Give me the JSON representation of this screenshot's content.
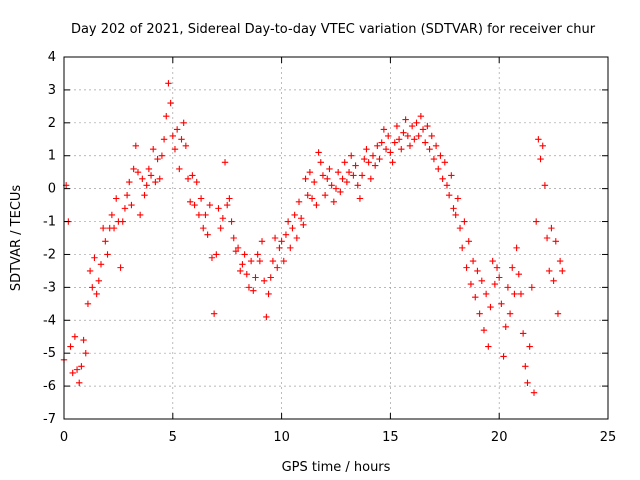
{
  "chart_data": {
    "type": "scatter",
    "title": "Day 202 of 2021, Sidereal Day-to-day VTEC variation (SDTVAR) for receiver chur",
    "xlabel": "GPS time / hours",
    "ylabel": "SDTVAR / TECUs",
    "xlim": [
      0,
      25
    ],
    "ylim": [
      -7,
      4
    ],
    "xticks": [
      0,
      5,
      10,
      15,
      20,
      25
    ],
    "yticks": [
      -7,
      -6,
      -5,
      -4,
      -3,
      -2,
      -1,
      0,
      1,
      2,
      3,
      4
    ],
    "grid": true,
    "marker": "+",
    "color": "#ff0000",
    "series": [
      {
        "name": "SDTVAR",
        "points": [
          [
            0.0,
            -5.2
          ],
          [
            0.1,
            0.1
          ],
          [
            0.2,
            -1.0
          ],
          [
            0.3,
            -4.8
          ],
          [
            0.4,
            -5.6
          ],
          [
            0.5,
            -4.5
          ],
          [
            0.6,
            -5.5
          ],
          [
            0.7,
            -5.9
          ],
          [
            0.8,
            -5.4
          ],
          [
            0.9,
            -4.6
          ],
          [
            1.0,
            -5.0
          ],
          [
            1.1,
            -3.5
          ],
          [
            1.2,
            -2.5
          ],
          [
            1.3,
            -3.0
          ],
          [
            1.4,
            -2.1
          ],
          [
            1.5,
            -3.2
          ],
          [
            1.6,
            -2.8
          ],
          [
            1.7,
            -2.3
          ],
          [
            1.8,
            -1.2
          ],
          [
            1.9,
            -1.6
          ],
          [
            2.0,
            -2.0
          ],
          [
            2.1,
            -1.2
          ],
          [
            2.2,
            -0.8
          ],
          [
            2.3,
            -1.2
          ],
          [
            2.4,
            -0.3
          ],
          [
            2.5,
            -1.0
          ],
          [
            2.6,
            -2.4
          ],
          [
            2.7,
            -1.0
          ],
          [
            2.8,
            -0.6
          ],
          [
            2.9,
            -0.2
          ],
          [
            3.0,
            0.2
          ],
          [
            3.1,
            -0.5
          ],
          [
            3.2,
            0.6
          ],
          [
            3.3,
            1.3
          ],
          [
            3.4,
            0.5
          ],
          [
            3.5,
            -0.8
          ],
          [
            3.6,
            0.3
          ],
          [
            3.7,
            -0.2
          ],
          [
            3.8,
            0.1
          ],
          [
            3.9,
            0.6
          ],
          [
            4.0,
            0.4
          ],
          [
            4.1,
            1.2
          ],
          [
            4.2,
            0.2
          ],
          [
            4.3,
            0.9
          ],
          [
            4.4,
            0.3
          ],
          [
            4.5,
            1.0
          ],
          [
            4.6,
            1.5
          ],
          [
            4.7,
            2.2
          ],
          [
            4.8,
            3.2
          ],
          [
            4.9,
            2.6
          ],
          [
            5.0,
            1.6
          ],
          [
            5.1,
            1.2
          ],
          [
            5.2,
            1.8
          ],
          [
            5.3,
            0.6
          ],
          [
            5.4,
            1.5
          ],
          [
            5.5,
            2.0
          ],
          [
            5.6,
            1.3
          ],
          [
            5.7,
            0.3
          ],
          [
            5.8,
            -0.4
          ],
          [
            5.9,
            0.4
          ],
          [
            6.0,
            -0.5
          ],
          [
            6.1,
            0.2
          ],
          [
            6.2,
            -0.8
          ],
          [
            6.3,
            -0.3
          ],
          [
            6.4,
            -1.2
          ],
          [
            6.5,
            -0.8
          ],
          [
            6.6,
            -1.4
          ],
          [
            6.7,
            -0.5
          ],
          [
            6.8,
            -2.1
          ],
          [
            6.9,
            -3.8
          ],
          [
            7.0,
            -2.0
          ],
          [
            7.1,
            -0.6
          ],
          [
            7.2,
            -1.2
          ],
          [
            7.3,
            -0.9
          ],
          [
            7.4,
            0.8
          ],
          [
            7.5,
            -0.5
          ],
          [
            7.6,
            -0.3
          ],
          [
            7.7,
            -1.0
          ],
          [
            7.8,
            -1.5
          ],
          [
            7.9,
            -1.9
          ],
          [
            8.0,
            -1.8
          ],
          [
            8.1,
            -2.5
          ],
          [
            8.2,
            -2.3
          ],
          [
            8.3,
            -2.0
          ],
          [
            8.4,
            -2.6
          ],
          [
            8.5,
            -3.0
          ],
          [
            8.6,
            -2.2
          ],
          [
            8.7,
            -3.1
          ],
          [
            8.8,
            -2.7
          ],
          [
            8.9,
            -2.0
          ],
          [
            9.0,
            -2.2
          ],
          [
            9.1,
            -1.6
          ],
          [
            9.2,
            -2.8
          ],
          [
            9.3,
            -3.9
          ],
          [
            9.4,
            -3.2
          ],
          [
            9.5,
            -2.7
          ],
          [
            9.6,
            -2.2
          ],
          [
            9.7,
            -1.5
          ],
          [
            9.8,
            -2.4
          ],
          [
            9.9,
            -1.8
          ],
          [
            10.0,
            -1.6
          ],
          [
            10.1,
            -2.2
          ],
          [
            10.2,
            -1.4
          ],
          [
            10.3,
            -1.0
          ],
          [
            10.4,
            -1.8
          ],
          [
            10.5,
            -1.2
          ],
          [
            10.6,
            -0.8
          ],
          [
            10.7,
            -1.5
          ],
          [
            10.8,
            -0.4
          ],
          [
            10.9,
            -0.9
          ],
          [
            11.0,
            -1.1
          ],
          [
            11.1,
            0.3
          ],
          [
            11.2,
            -0.2
          ],
          [
            11.3,
            0.5
          ],
          [
            11.4,
            -0.3
          ],
          [
            11.5,
            0.2
          ],
          [
            11.6,
            -0.5
          ],
          [
            11.7,
            1.1
          ],
          [
            11.8,
            0.8
          ],
          [
            11.9,
            0.4
          ],
          [
            12.0,
            -0.2
          ],
          [
            12.1,
            0.3
          ],
          [
            12.2,
            0.6
          ],
          [
            12.3,
            0.1
          ],
          [
            12.4,
            -0.4
          ],
          [
            12.5,
            0.0
          ],
          [
            12.6,
            0.5
          ],
          [
            12.7,
            -0.1
          ],
          [
            12.8,
            0.3
          ],
          [
            12.9,
            0.8
          ],
          [
            13.0,
            0.2
          ],
          [
            13.1,
            0.5
          ],
          [
            13.2,
            1.0
          ],
          [
            13.3,
            0.4
          ],
          [
            13.4,
            0.7
          ],
          [
            13.5,
            0.1
          ],
          [
            13.6,
            -0.3
          ],
          [
            13.7,
            0.4
          ],
          [
            13.8,
            0.9
          ],
          [
            13.9,
            1.2
          ],
          [
            14.0,
            0.8
          ],
          [
            14.1,
            0.3
          ],
          [
            14.2,
            1.0
          ],
          [
            14.3,
            0.7
          ],
          [
            14.4,
            1.3
          ],
          [
            14.5,
            0.9
          ],
          [
            14.6,
            1.4
          ],
          [
            14.7,
            1.8
          ],
          [
            14.8,
            1.2
          ],
          [
            14.9,
            1.6
          ],
          [
            15.0,
            1.1
          ],
          [
            15.1,
            0.8
          ],
          [
            15.2,
            1.4
          ],
          [
            15.3,
            1.9
          ],
          [
            15.4,
            1.5
          ],
          [
            15.5,
            1.2
          ],
          [
            15.6,
            1.7
          ],
          [
            15.7,
            2.1
          ],
          [
            15.8,
            1.6
          ],
          [
            15.9,
            1.3
          ],
          [
            16.0,
            1.9
          ],
          [
            16.1,
            1.5
          ],
          [
            16.2,
            2.0
          ],
          [
            16.3,
            1.6
          ],
          [
            16.4,
            2.2
          ],
          [
            16.5,
            1.8
          ],
          [
            16.6,
            1.4
          ],
          [
            16.7,
            1.9
          ],
          [
            16.8,
            1.2
          ],
          [
            16.9,
            1.6
          ],
          [
            17.0,
            0.9
          ],
          [
            17.1,
            1.3
          ],
          [
            17.2,
            0.6
          ],
          [
            17.3,
            1.0
          ],
          [
            17.4,
            0.3
          ],
          [
            17.5,
            0.8
          ],
          [
            17.6,
            0.1
          ],
          [
            17.7,
            -0.2
          ],
          [
            17.8,
            0.4
          ],
          [
            17.9,
            -0.6
          ],
          [
            18.0,
            -0.8
          ],
          [
            18.1,
            -0.3
          ],
          [
            18.2,
            -1.2
          ],
          [
            18.3,
            -1.8
          ],
          [
            18.4,
            -1.0
          ],
          [
            18.5,
            -2.4
          ],
          [
            18.6,
            -1.6
          ],
          [
            18.7,
            -2.9
          ],
          [
            18.8,
            -2.2
          ],
          [
            18.9,
            -3.3
          ],
          [
            19.0,
            -2.5
          ],
          [
            19.1,
            -3.8
          ],
          [
            19.2,
            -2.8
          ],
          [
            19.3,
            -4.3
          ],
          [
            19.4,
            -3.2
          ],
          [
            19.5,
            -4.8
          ],
          [
            19.6,
            -3.6
          ],
          [
            19.7,
            -2.2
          ],
          [
            19.8,
            -2.9
          ],
          [
            19.9,
            -2.4
          ],
          [
            20.0,
            -2.7
          ],
          [
            20.1,
            -3.5
          ],
          [
            20.2,
            -5.1
          ],
          [
            20.3,
            -4.2
          ],
          [
            20.4,
            -3.0
          ],
          [
            20.5,
            -3.8
          ],
          [
            20.6,
            -2.4
          ],
          [
            20.7,
            -3.2
          ],
          [
            20.8,
            -1.8
          ],
          [
            20.9,
            -2.6
          ],
          [
            21.0,
            -3.2
          ],
          [
            21.1,
            -4.4
          ],
          [
            21.2,
            -5.4
          ],
          [
            21.3,
            -5.9
          ],
          [
            21.4,
            -4.8
          ],
          [
            21.5,
            -3.0
          ],
          [
            21.6,
            -6.2
          ],
          [
            21.7,
            -1.0
          ],
          [
            21.8,
            1.5
          ],
          [
            21.9,
            0.9
          ],
          [
            22.0,
            1.3
          ],
          [
            22.1,
            0.1
          ],
          [
            22.2,
            -1.5
          ],
          [
            22.3,
            -2.5
          ],
          [
            22.4,
            -1.2
          ],
          [
            22.5,
            -2.8
          ],
          [
            22.6,
            -1.6
          ],
          [
            22.7,
            -3.8
          ],
          [
            22.8,
            -2.2
          ],
          [
            22.9,
            -2.5
          ]
        ]
      }
    ]
  }
}
